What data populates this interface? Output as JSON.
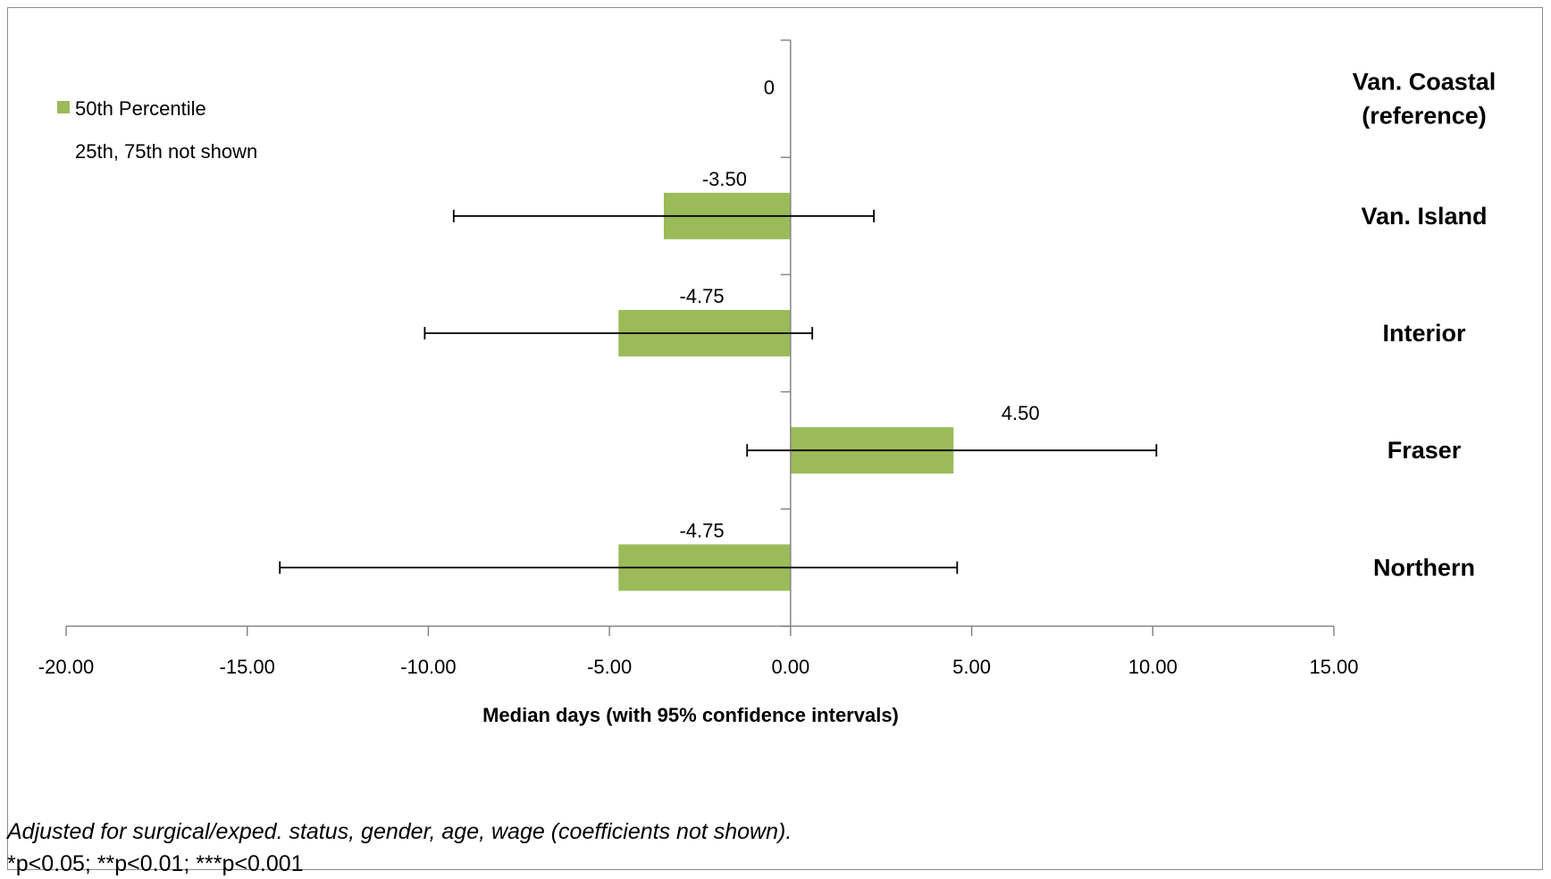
{
  "chart_data": {
    "type": "bar",
    "orientation": "horizontal",
    "categories": [
      "Van. Coastal (reference)",
      "Van. Island",
      "Interior",
      "Fraser",
      "Northern"
    ],
    "category_lines": [
      [
        "Van. Coastal",
        "(reference)"
      ],
      [
        "Van. Island"
      ],
      [
        "Interior"
      ],
      [
        "Fraser"
      ],
      [
        "Northern"
      ]
    ],
    "series": [
      {
        "name": "50th Percentile",
        "color": "#9bbb59",
        "values": [
          0,
          -3.5,
          -4.75,
          4.5,
          -4.75
        ],
        "value_labels": [
          "0",
          "-3.50",
          "-4.75",
          "4.50",
          "-4.75"
        ],
        "ci_low": [
          null,
          -9.3,
          -10.1,
          -1.2,
          -14.1
        ],
        "ci_high": [
          null,
          2.3,
          0.6,
          10.1,
          4.6
        ]
      }
    ],
    "legend_note": "25th, 75th not shown",
    "xlabel": "Median days (with 95% confidence intervals)",
    "xlim": [
      -20,
      15
    ],
    "xticks": [
      -20,
      -15,
      -10,
      -5,
      0,
      5,
      10,
      15
    ],
    "xtick_labels": [
      "-20.00",
      "-15.00",
      "-10.00",
      "-5.00",
      "0.00",
      "5.00",
      "10.00",
      "15.00"
    ],
    "grid": false,
    "legend_position": "top-left"
  },
  "footnotes": {
    "line1": "Adjusted for surgical/exped. status, gender, age, wage (coefficients not shown).",
    "line2": "*p<0.05;  **p<0.01; ***p<0.001"
  }
}
